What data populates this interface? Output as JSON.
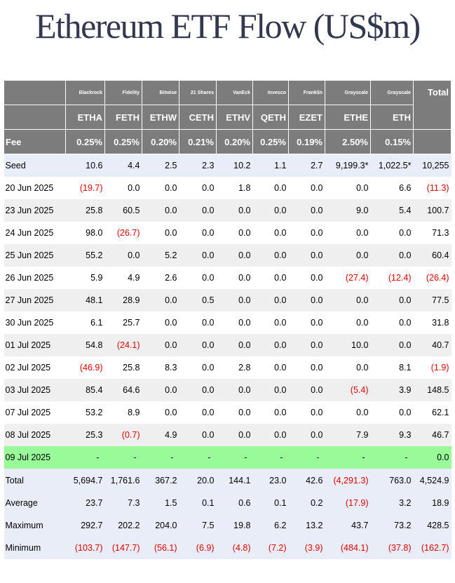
{
  "title": "Ethereum ETF Flow (US$m)",
  "colors": {
    "negative": "#e00000",
    "header_bg": "#7c7c7c",
    "highlight_row": "#98fa98",
    "stripe_blue": "#e9edf7"
  },
  "issuers": [
    "Blackrock",
    "Fidelity",
    "Bitwise",
    "21 Shares",
    "VanEck",
    "Invesco",
    "Franklin",
    "Grayscale",
    "Grayscale"
  ],
  "total_header": "Total",
  "tickers": [
    "ETHA",
    "FETH",
    "ETHW",
    "CETH",
    "ETHV",
    "QETH",
    "EZET",
    "ETHE",
    "ETH"
  ],
  "fee_label": "Fee",
  "fees": [
    "0.25%",
    "0.25%",
    "0.20%",
    "0.21%",
    "0.20%",
    "0.25%",
    "0.19%",
    "2.50%",
    "0.15%"
  ],
  "rows": [
    {
      "label": "Seed",
      "style": "blue",
      "values": [
        "10.6",
        "4.4",
        "2.5",
        "2.3",
        "10.2",
        "1.1",
        "2.7",
        "9,199.3*",
        "1,022.5*",
        "10,255"
      ]
    },
    {
      "label": "20 Jun 2025",
      "style": "white",
      "values": [
        "(19.7)",
        "0.0",
        "0.0",
        "0.0",
        "1.8",
        "0.0",
        "0.0",
        "0.0",
        "6.6",
        "(11.3)"
      ]
    },
    {
      "label": "23 Jun 2025",
      "style": "gray",
      "values": [
        "25.8",
        "60.5",
        "0.0",
        "0.0",
        "0.0",
        "0.0",
        "0.0",
        "9.0",
        "5.4",
        "100.7"
      ]
    },
    {
      "label": "24 Jun 2025",
      "style": "white",
      "values": [
        "98.0",
        "(26.7)",
        "0.0",
        "0.0",
        "0.0",
        "0.0",
        "0.0",
        "0.0",
        "0.0",
        "71.3"
      ]
    },
    {
      "label": "25 Jun 2025",
      "style": "gray",
      "values": [
        "55.2",
        "0.0",
        "5.2",
        "0.0",
        "0.0",
        "0.0",
        "0.0",
        "0.0",
        "0.0",
        "60.4"
      ]
    },
    {
      "label": "26 Jun 2025",
      "style": "white",
      "values": [
        "5.9",
        "4.9",
        "2.6",
        "0.0",
        "0.0",
        "0.0",
        "0.0",
        "(27.4)",
        "(12.4)",
        "(26.4)"
      ]
    },
    {
      "label": "27 Jun 2025",
      "style": "gray",
      "values": [
        "48.1",
        "28.9",
        "0.0",
        "0.5",
        "0.0",
        "0.0",
        "0.0",
        "0.0",
        "0.0",
        "77.5"
      ]
    },
    {
      "label": "30 Jun 2025",
      "style": "white",
      "values": [
        "6.1",
        "25.7",
        "0.0",
        "0.0",
        "0.0",
        "0.0",
        "0.0",
        "0.0",
        "0.0",
        "31.8"
      ]
    },
    {
      "label": "01 Jul 2025",
      "style": "gray",
      "values": [
        "54.8",
        "(24.1)",
        "0.0",
        "0.0",
        "0.0",
        "0.0",
        "0.0",
        "10.0",
        "0.0",
        "40.7"
      ]
    },
    {
      "label": "02 Jul 2025",
      "style": "white",
      "values": [
        "(46.9)",
        "25.8",
        "8.3",
        "0.0",
        "2.8",
        "0.0",
        "0.0",
        "0.0",
        "8.1",
        "(1.9)"
      ]
    },
    {
      "label": "03 Jul 2025",
      "style": "gray",
      "values": [
        "85.4",
        "64.6",
        "0.0",
        "0.0",
        "0.0",
        "0.0",
        "0.0",
        "(5.4)",
        "3.9",
        "148.5"
      ]
    },
    {
      "label": "07 Jul 2025",
      "style": "white",
      "values": [
        "53.2",
        "8.9",
        "0.0",
        "0.0",
        "0.0",
        "0.0",
        "0.0",
        "0.0",
        "0.0",
        "62.1"
      ]
    },
    {
      "label": "08 Jul 2025",
      "style": "gray",
      "values": [
        "25.3",
        "(0.7)",
        "4.9",
        "0.0",
        "0.0",
        "0.0",
        "0.0",
        "7.9",
        "9.3",
        "46.7"
      ]
    },
    {
      "label": "09 Jul 2025",
      "style": "green",
      "values": [
        "-",
        "-",
        "-",
        "-",
        "-",
        "-",
        "-",
        "-",
        "-",
        "0.0"
      ]
    },
    {
      "label": "Total",
      "style": "blue total",
      "values": [
        "5,694.7",
        "1,761.6",
        "367.2",
        "20.0",
        "144.1",
        "23.0",
        "42.6",
        "(4,291.3)",
        "763.0",
        "4,524.9"
      ]
    },
    {
      "label": "Average",
      "style": "blue",
      "values": [
        "23.7",
        "7.3",
        "1.5",
        "0.1",
        "0.6",
        "0.1",
        "0.2",
        "(17.9)",
        "3.2",
        "18.9"
      ]
    },
    {
      "label": "Maximum",
      "style": "blue",
      "values": [
        "292.7",
        "202.2",
        "204.0",
        "7.5",
        "19.8",
        "6.2",
        "13.2",
        "43.7",
        "73.2",
        "428.5"
      ]
    },
    {
      "label": "Minimum",
      "style": "blue",
      "values": [
        "(103.7)",
        "(147.7)",
        "(56.1)",
        "(6.9)",
        "(4.8)",
        "(7.2)",
        "(3.9)",
        "(484.1)",
        "(37.8)",
        "(162.7)"
      ]
    }
  ]
}
